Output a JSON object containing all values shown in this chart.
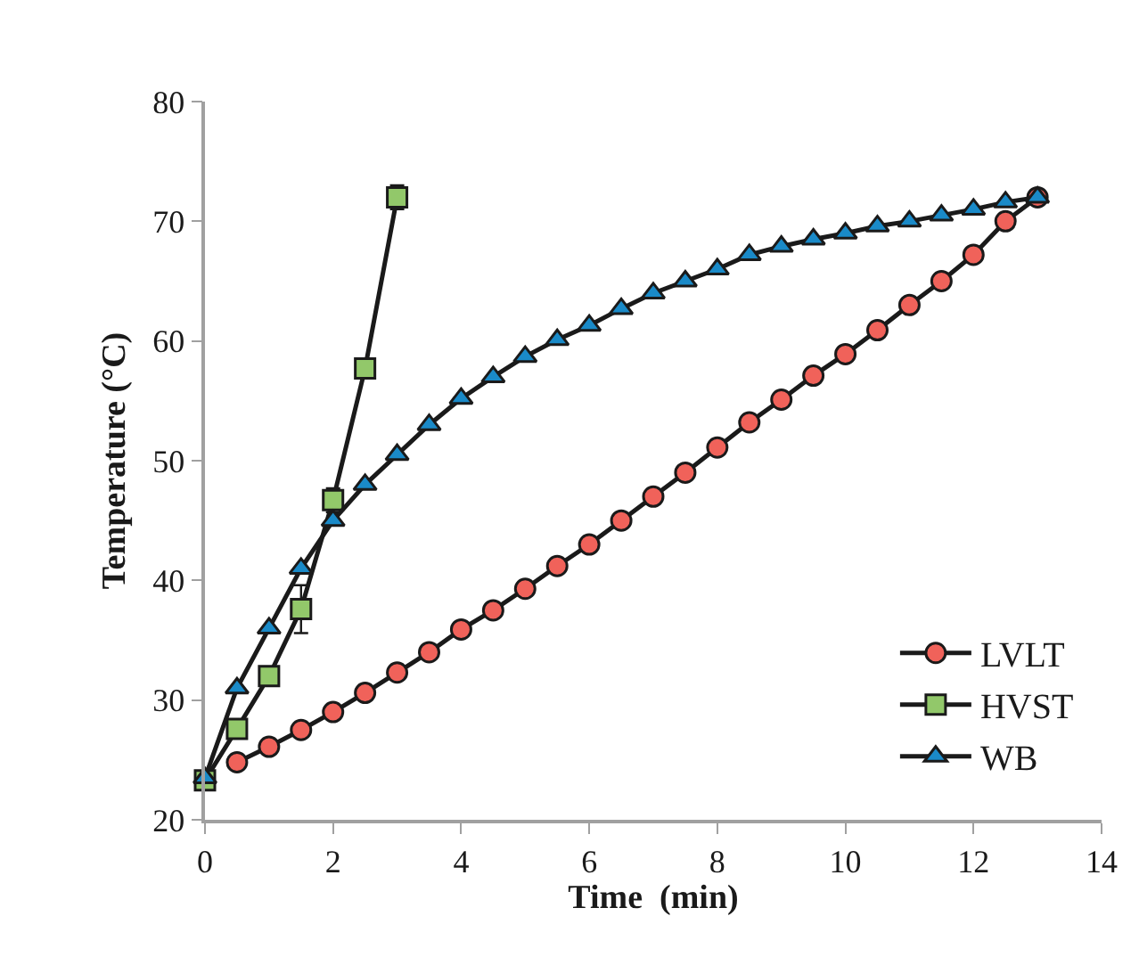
{
  "chart_data": {
    "type": "line",
    "xlabel": "Time  (min)",
    "ylabel": "Temperature (°C)",
    "xlim": [
      0,
      14
    ],
    "xticks": [
      0,
      2,
      4,
      6,
      8,
      10,
      12,
      14
    ],
    "ylim": [
      20,
      80
    ],
    "yticks": [
      20,
      30,
      40,
      50,
      60,
      70,
      80
    ],
    "grid": false,
    "legend": "bottom right",
    "line_style": "solid",
    "series": [
      {
        "name": "LVLT",
        "color": "#f0625a",
        "marker": "circle",
        "x": [
          0.5,
          1,
          1.5,
          2,
          2.5,
          3,
          3.5,
          4,
          4.5,
          5,
          5.5,
          6,
          6.5,
          7,
          7.5,
          8,
          8.5,
          9,
          9.5,
          10,
          10.5,
          11,
          11.5,
          12,
          12.5,
          13
        ],
        "values": [
          24.8,
          26.1,
          27.5,
          29,
          30.6,
          32.3,
          34,
          35.9,
          37.5,
          39.3,
          41.2,
          43,
          45,
          47,
          49,
          51.1,
          53.2,
          55.1,
          57.1,
          58.9,
          60.9,
          63,
          65,
          67.2,
          70,
          72
        ]
      },
      {
        "name": "HVST",
        "color": "#92c86a",
        "marker": "square",
        "x": [
          0,
          0.5,
          1,
          1.5,
          2,
          2.5,
          3
        ],
        "values": [
          23.3,
          27.6,
          32,
          37.6,
          46.7,
          57.7,
          72
        ],
        "errors": [
          null,
          null,
          null,
          2,
          1,
          null,
          1
        ]
      },
      {
        "name": "WB",
        "color": "#1a8ac8",
        "marker": "triangle",
        "x": [
          0,
          0.5,
          1,
          1.5,
          2,
          2.5,
          3,
          3.5,
          4,
          4.5,
          5,
          5.5,
          6,
          6.5,
          7,
          7.5,
          8,
          8.5,
          9,
          9.5,
          10,
          10.5,
          11,
          11.5,
          12,
          12.5,
          13
        ],
        "values": [
          23.5,
          31,
          36,
          41,
          45,
          48,
          50.5,
          53,
          55.2,
          57,
          58.7,
          60.1,
          61.3,
          62.7,
          64,
          65,
          66,
          67.2,
          67.9,
          68.5,
          69,
          69.6,
          70,
          70.5,
          71,
          71.6,
          72
        ]
      }
    ]
  }
}
